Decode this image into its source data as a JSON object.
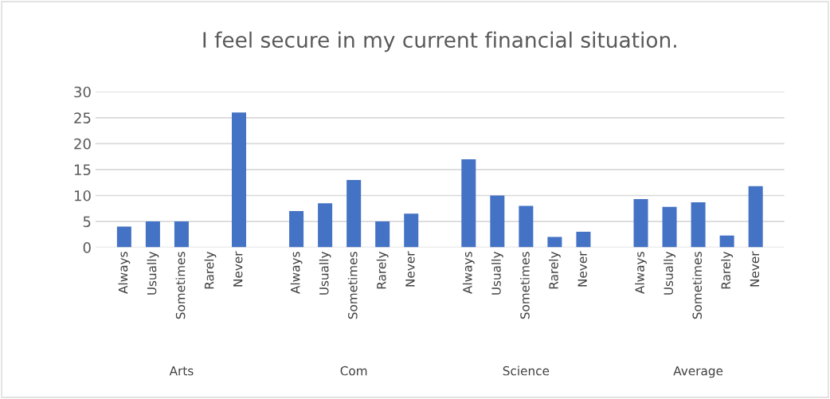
{
  "chart_data": {
    "type": "bar",
    "title": "I feel secure in my current financial situation.",
    "categories": [
      "Always",
      "Usually",
      "Sometimes",
      "Rarely",
      "Never",
      "Always",
      "Usually",
      "Sometimes",
      "Rarely",
      "Never",
      "Always",
      "Usually",
      "Sometimes",
      "Rarely",
      "Never",
      "Always",
      "Usually",
      "Sometimes",
      "Rarely",
      "Never"
    ],
    "values": [
      4,
      5,
      5,
      0,
      26,
      7,
      8.5,
      13,
      5,
      6.5,
      17,
      10,
      8,
      2,
      3,
      9.3,
      7.8,
      8.7,
      2.3,
      11.8
    ],
    "color": "#4472c4",
    "annotations": [
      "Arts",
      "Com",
      "Science",
      "Average"
    ],
    "ylim": [
      0,
      30
    ],
    "yticks": [
      0,
      5,
      10,
      15,
      20,
      25,
      30
    ],
    "grid": "y"
  }
}
